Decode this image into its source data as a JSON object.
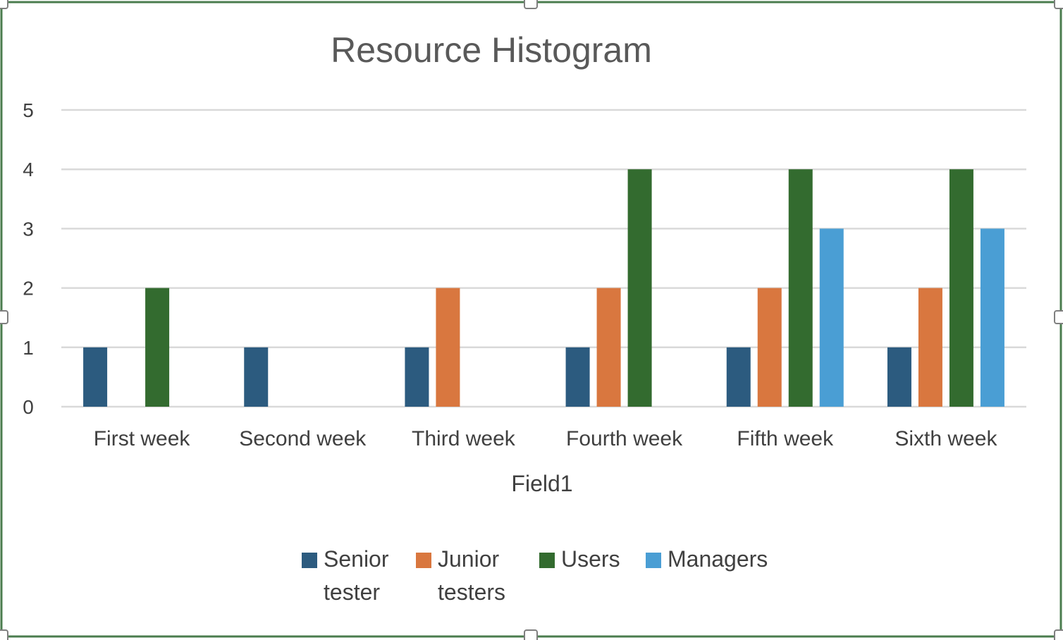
{
  "chart_data": {
    "type": "bar",
    "title": "Resource Histogram",
    "xlabel": "Field1",
    "ylabel": "",
    "ylim": [
      0,
      5
    ],
    "yticks": [
      "0",
      "1",
      "2",
      "3",
      "4",
      "5"
    ],
    "categories": [
      "First week",
      "Second week",
      "Third week",
      "Fourth week",
      "Fifth week",
      "Sixth week"
    ],
    "series": [
      {
        "name": "Senior tester",
        "legend_lines": [
          "Senior",
          "tester"
        ],
        "color": "#2c5b7f",
        "values": [
          1,
          1,
          1,
          1,
          1,
          1
        ]
      },
      {
        "name": "Junior testers",
        "legend_lines": [
          "Junior",
          "testers"
        ],
        "color": "#d9773f",
        "values": [
          0,
          0,
          2,
          2,
          2,
          2
        ]
      },
      {
        "name": "Users",
        "legend_lines": [
          "Users"
        ],
        "color": "#336b2f",
        "values": [
          2,
          0,
          0,
          4,
          4,
          4
        ]
      },
      {
        "name": "Managers",
        "legend_lines": [
          "Managers"
        ],
        "color": "#4a9ed4",
        "values": [
          0,
          0,
          0,
          0,
          3,
          3
        ]
      }
    ],
    "grid": true,
    "legend": "bottom",
    "colors": {
      "frame": "#4a7c4e",
      "grid": "#d9d9d9"
    }
  }
}
